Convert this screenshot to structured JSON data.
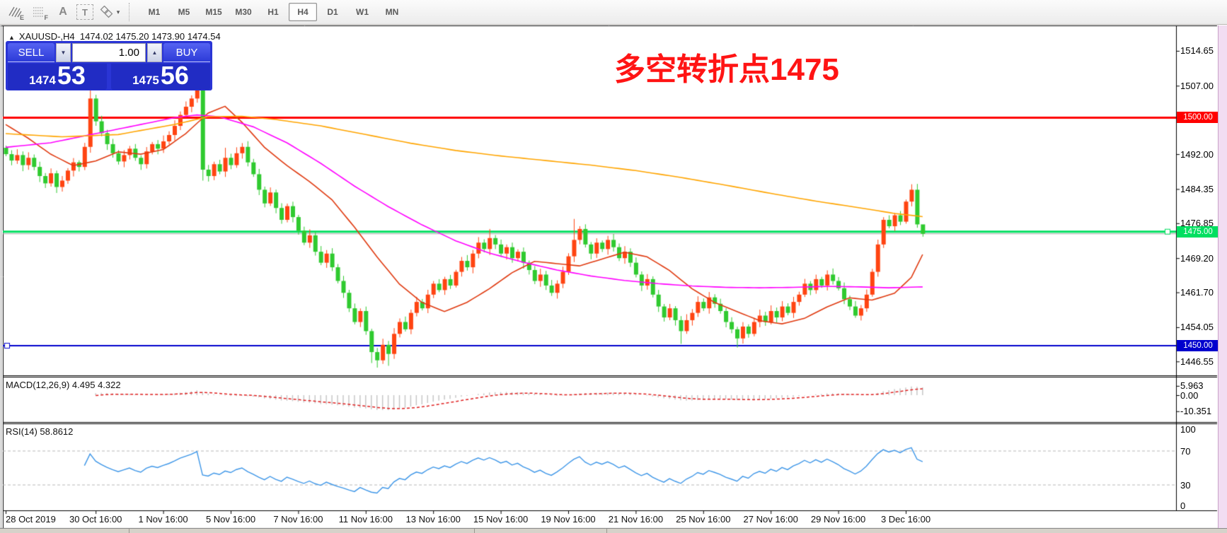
{
  "toolbar": {
    "tools": [
      {
        "name": "indicators-e-icon",
        "sub": "E"
      },
      {
        "name": "grid-f-icon",
        "sub": "F"
      },
      {
        "name": "text-label-a-icon",
        "glyph": "A"
      },
      {
        "name": "text-box-t-icon",
        "glyph": "T"
      },
      {
        "name": "shapes-tool-icon",
        "caret": "▾"
      }
    ],
    "timeframes": [
      "M1",
      "M5",
      "M15",
      "M30",
      "H1",
      "H4",
      "D1",
      "W1",
      "MN"
    ],
    "active_timeframe": "H4"
  },
  "chart_header": {
    "collapse_arrow": "▲",
    "symbol_period": "XAUUSD-,H4",
    "ohlc_text": "1474.02 1475.20 1473.90 1474.54"
  },
  "trade_panel": {
    "sell_label": "SELL",
    "buy_label": "BUY",
    "volume": "1.00",
    "down_arrow": "▼",
    "up_arrow": "▲",
    "sell_base": "1474",
    "sell_big": "53",
    "buy_base": "1475",
    "buy_big": "56"
  },
  "annotation": {
    "text": "多空转折点1475",
    "color": "#ff1414"
  },
  "price_axis": {
    "ticks": [
      "1514.65",
      "1507.00",
      "1492.00",
      "1484.35",
      "1476.85",
      "1469.20",
      "1461.70",
      "1454.05",
      "1446.55"
    ],
    "hlines": [
      {
        "price": 1500.0,
        "label": "1500.00",
        "color": "#ff0000",
        "width": 3
      },
      {
        "price": 1475.0,
        "label": "1475.00",
        "color": "#00df60",
        "width": 3
      },
      {
        "price": 1450.0,
        "label": "1450.00",
        "color": "#0000cd",
        "width": 2
      }
    ],
    "current_price_line": {
      "price": 1474.54,
      "color": "#aaaaaa"
    }
  },
  "time_axis": {
    "labels": [
      {
        "text": "28 Oct 2019",
        "bar": 0
      },
      {
        "text": "30 Oct 16:00",
        "bar": 16
      },
      {
        "text": "1 Nov 16:00",
        "bar": 28
      },
      {
        "text": "5 Nov 16:00",
        "bar": 40
      },
      {
        "text": "7 Nov 16:00",
        "bar": 52
      },
      {
        "text": "11 Nov 16:00",
        "bar": 64
      },
      {
        "text": "13 Nov 16:00",
        "bar": 76
      },
      {
        "text": "15 Nov 16:00",
        "bar": 88
      },
      {
        "text": "19 Nov 16:00",
        "bar": 100
      },
      {
        "text": "21 Nov 16:00",
        "bar": 112
      },
      {
        "text": "25 Nov 16:00",
        "bar": 124
      },
      {
        "text": "27 Nov 16:00",
        "bar": 136
      },
      {
        "text": "29 Nov 16:00",
        "bar": 148
      },
      {
        "text": "3 Dec 16:00",
        "bar": 160
      }
    ]
  },
  "indicators": {
    "macd": {
      "label": "MACD(12,26,9) 4.495 4.322",
      "axis_labels": [
        "5.963",
        "0.00",
        "-10.351"
      ],
      "params": {
        "fast": 12,
        "slow": 26,
        "signal": 9
      },
      "current_main": 4.495,
      "current_signal": 4.322
    },
    "rsi": {
      "label": "RSI(14) 58.8612",
      "axis_labels": [
        "100",
        "70",
        "30",
        "0"
      ],
      "period": 14,
      "current": 58.8612,
      "levels": [
        70,
        30
      ]
    }
  },
  "chart_data": {
    "type": "candlestick",
    "symbol": "XAUUSD-",
    "timeframe": "H4",
    "ohlc_current": {
      "open": 1474.02,
      "high": 1475.2,
      "low": 1473.9,
      "close": 1474.54
    },
    "ylim": [
      1443.5,
      1519.6
    ],
    "bull_color": "#ff4411",
    "bear_color": "#2fca2f",
    "candles": {
      "first_open": 1493.4,
      "closes": [
        1492.0,
        1490.6,
        1491.8,
        1489.6,
        1491.2,
        1489.2,
        1487.2,
        1485.6,
        1487.8,
        1484.8,
        1486.2,
        1488.4,
        1490.2,
        1489.2,
        1493.6,
        1504.2,
        1499.2,
        1496.6,
        1494.2,
        1492.2,
        1490.4,
        1491.8,
        1493.2,
        1491.2,
        1489.8,
        1492.6,
        1494.2,
        1493.2,
        1494.8,
        1496.2,
        1498.2,
        1500.6,
        1502.4,
        1504.2,
        1507.0,
        1488.6,
        1487.2,
        1489.8,
        1488.2,
        1491.2,
        1489.6,
        1492.2,
        1493.6,
        1490.2,
        1487.6,
        1484.2,
        1481.2,
        1483.6,
        1480.2,
        1477.6,
        1480.6,
        1478.2,
        1475.2,
        1472.6,
        1474.2,
        1470.6,
        1468.2,
        1470.2,
        1467.2,
        1464.2,
        1461.6,
        1458.2,
        1455.2,
        1457.6,
        1453.2,
        1448.6,
        1446.8,
        1450.2,
        1448.2,
        1452.6,
        1455.2,
        1453.6,
        1457.2,
        1459.6,
        1458.2,
        1461.2,
        1463.6,
        1462.2,
        1464.6,
        1463.2,
        1466.2,
        1468.6,
        1467.2,
        1470.2,
        1472.6,
        1471.2,
        1473.6,
        1472.2,
        1470.2,
        1471.6,
        1469.2,
        1470.6,
        1468.2,
        1466.6,
        1464.2,
        1465.6,
        1463.2,
        1461.6,
        1463.6,
        1466.2,
        1469.6,
        1473.2,
        1475.6,
        1472.2,
        1470.2,
        1472.6,
        1471.2,
        1473.2,
        1471.6,
        1469.2,
        1470.6,
        1468.2,
        1465.6,
        1463.2,
        1464.6,
        1461.2,
        1458.6,
        1456.2,
        1458.2,
        1455.6,
        1453.2,
        1455.6,
        1457.2,
        1459.6,
        1458.2,
        1460.6,
        1459.2,
        1457.6,
        1455.2,
        1453.6,
        1451.6,
        1454.2,
        1452.6,
        1455.2,
        1456.6,
        1455.2,
        1457.6,
        1456.2,
        1458.6,
        1457.2,
        1459.6,
        1461.2,
        1463.6,
        1462.2,
        1464.6,
        1463.2,
        1465.6,
        1464.2,
        1462.6,
        1460.2,
        1458.6,
        1456.6,
        1458.2,
        1461.2,
        1466.2,
        1472.2,
        1477.6,
        1476.2,
        1478.6,
        1477.2,
        1481.6,
        1484.2,
        1476.6,
        1474.54
      ],
      "wick_overrides": {
        "15": {
          "h": 1507.2
        },
        "34": {
          "h": 1511.2
        },
        "35": {
          "l": 1486.2
        },
        "39": {
          "h": 1493.4
        },
        "65": {
          "l": 1446.2
        },
        "66": {
          "l": 1445.2
        },
        "68": {
          "l": 1445.6
        },
        "86": {
          "h": 1475.6
        },
        "101": {
          "h": 1477.8
        },
        "120": {
          "l": 1450.4
        },
        "130": {
          "l": 1449.6
        },
        "161": {
          "h": 1485.4
        },
        "163": {
          "h": 1475.2,
          "l": 1473.9
        }
      }
    },
    "moving_averages": [
      {
        "name": "ma-fast",
        "color": "#e03a10",
        "points": [
          [
            0,
            1498.5
          ],
          [
            4,
            1495.5
          ],
          [
            8,
            1492.0
          ],
          [
            12,
            1489.5
          ],
          [
            16,
            1490.5
          ],
          [
            20,
            1492.5
          ],
          [
            24,
            1492.0
          ],
          [
            28,
            1493.0
          ],
          [
            32,
            1496.5
          ],
          [
            36,
            1501.0
          ],
          [
            39,
            1502.5
          ],
          [
            42,
            1499.0
          ],
          [
            46,
            1493.5
          ],
          [
            50,
            1489.5
          ],
          [
            54,
            1486.0
          ],
          [
            58,
            1482.0
          ],
          [
            62,
            1476.0
          ],
          [
            66,
            1469.5
          ],
          [
            70,
            1463.5
          ],
          [
            74,
            1459.5
          ],
          [
            78,
            1457.5
          ],
          [
            82,
            1459.5
          ],
          [
            86,
            1462.5
          ],
          [
            90,
            1466.0
          ],
          [
            94,
            1468.5
          ],
          [
            98,
            1468.0
          ],
          [
            102,
            1467.5
          ],
          [
            106,
            1469.0
          ],
          [
            110,
            1470.5
          ],
          [
            114,
            1469.5
          ],
          [
            118,
            1466.5
          ],
          [
            122,
            1462.5
          ],
          [
            126,
            1459.5
          ],
          [
            130,
            1457.5
          ],
          [
            134,
            1455.5
          ],
          [
            138,
            1454.8
          ],
          [
            142,
            1456.0
          ],
          [
            146,
            1458.5
          ],
          [
            150,
            1460.5
          ],
          [
            154,
            1460.0
          ],
          [
            158,
            1461.5
          ],
          [
            161,
            1465.0
          ],
          [
            163,
            1470.0
          ]
        ]
      },
      {
        "name": "ma-mid",
        "color": "#ff00ff",
        "points": [
          [
            0,
            1493.5
          ],
          [
            8,
            1494.5
          ],
          [
            16,
            1496.5
          ],
          [
            24,
            1498.5
          ],
          [
            30,
            1500.0
          ],
          [
            34,
            1500.6
          ],
          [
            38,
            1500.2
          ],
          [
            44,
            1498.0
          ],
          [
            50,
            1494.5
          ],
          [
            56,
            1490.0
          ],
          [
            62,
            1485.0
          ],
          [
            68,
            1480.5
          ],
          [
            74,
            1476.5
          ],
          [
            80,
            1473.0
          ],
          [
            86,
            1470.3
          ],
          [
            92,
            1468.3
          ],
          [
            98,
            1466.6
          ],
          [
            104,
            1465.3
          ],
          [
            110,
            1464.3
          ],
          [
            116,
            1463.6
          ],
          [
            122,
            1463.1
          ],
          [
            128,
            1462.8
          ],
          [
            134,
            1462.7
          ],
          [
            140,
            1462.8
          ],
          [
            146,
            1463.0
          ],
          [
            152,
            1462.9
          ],
          [
            157,
            1462.7
          ],
          [
            163,
            1462.9
          ]
        ]
      },
      {
        "name": "ma-slow",
        "color": "#ffa500",
        "points": [
          [
            0,
            1496.5
          ],
          [
            10,
            1495.8
          ],
          [
            20,
            1496.3
          ],
          [
            30,
            1498.5
          ],
          [
            36,
            1500.2
          ],
          [
            42,
            1500.3
          ],
          [
            48,
            1499.6
          ],
          [
            56,
            1498.2
          ],
          [
            64,
            1496.3
          ],
          [
            72,
            1494.4
          ],
          [
            80,
            1492.8
          ],
          [
            88,
            1491.6
          ],
          [
            96,
            1490.6
          ],
          [
            104,
            1489.6
          ],
          [
            112,
            1488.4
          ],
          [
            120,
            1486.9
          ],
          [
            128,
            1485.2
          ],
          [
            136,
            1483.4
          ],
          [
            144,
            1481.7
          ],
          [
            152,
            1480.2
          ],
          [
            158,
            1479.0
          ],
          [
            163,
            1478.3
          ]
        ]
      }
    ]
  }
}
